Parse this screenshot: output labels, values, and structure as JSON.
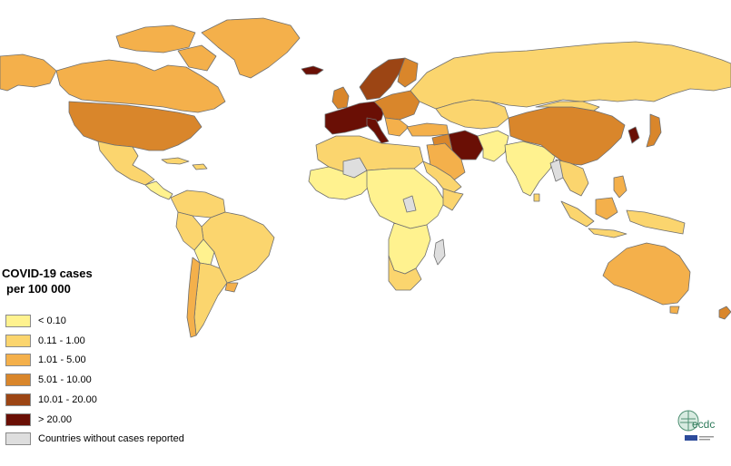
{
  "legend": {
    "title_line1": "COVID-19 cases",
    "title_line2": "per 100 000",
    "items": [
      {
        "label": "< 0.10",
        "color": "#fff28f"
      },
      {
        "label": "0.11 - 1.00",
        "color": "#fbd56e"
      },
      {
        "label": "1.01 - 5.00",
        "color": "#f4b04b"
      },
      {
        "label": "5.01 - 10.00",
        "color": "#d9862b"
      },
      {
        "label": "10.01 - 20.00",
        "color": "#9c4514"
      },
      {
        "label": "> 20.00",
        "color": "#6a0f05"
      },
      {
        "label": "Countries without cases reported",
        "color": "#dedede"
      }
    ]
  },
  "logo": {
    "text": "ecdc"
  },
  "colors": {
    "border": "#6f6f6f",
    "background": "#ffffff"
  }
}
